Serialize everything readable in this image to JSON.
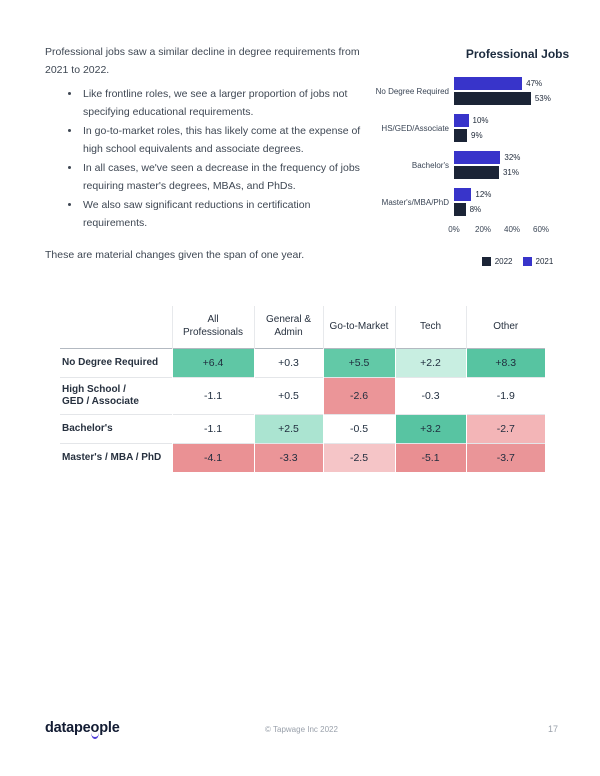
{
  "intro": {
    "lead": "Professional jobs saw a similar decline in degree requirements from 2021 to 2022.",
    "bullets": [
      "Like frontline roles, we see a larger proportion of jobs not specifying educational requirements.",
      "In go-to-market roles, this has likely come at the expense of high school equivalents and associate degrees.",
      "In all cases, we've seen a decrease in the frequency of jobs requiring master's degrees, MBAs, and PhDs.",
      "We also saw significant reductions in certification requirements."
    ],
    "outro": "These are material changes given the span of one year."
  },
  "chart_data": {
    "type": "bar",
    "orientation": "horizontal",
    "title": "Professional Jobs",
    "categories": [
      "No Degree Required",
      "HS/GED/Associate",
      "Bachelor's",
      "Master's/MBA/PhD"
    ],
    "series": [
      {
        "name": "2021",
        "color": "#3834ca",
        "values": [
          47,
          10,
          32,
          12
        ]
      },
      {
        "name": "2022",
        "color": "#1b2436",
        "values": [
          53,
          9,
          31,
          8
        ]
      }
    ],
    "value_label_suffix": "%",
    "x_ticks": [
      "0%",
      "20%",
      "40%",
      "60%"
    ],
    "x_tick_values": [
      0,
      20,
      40,
      60
    ],
    "xlim": [
      0,
      60
    ],
    "grid": false,
    "legend_position": "bottom",
    "legend": [
      {
        "label": "2022",
        "color": "#1b2436"
      },
      {
        "label": "2021",
        "color": "#3834ca"
      }
    ]
  },
  "table": {
    "columns": [
      "All Professionals",
      "General & Admin",
      "Go-to-Market",
      "Tech",
      "Other"
    ],
    "rows": [
      {
        "label": "No Degree Required",
        "values": [
          "+6.4",
          "+0.3",
          "+5.5",
          "+2.2",
          "+8.3"
        ],
        "colors": [
          "#5fc7a5",
          "#ffffff",
          "#62c9a7",
          "#c8eee1",
          "#57c4a1"
        ]
      },
      {
        "label": "High School /\nGED / Associate",
        "values": [
          "-1.1",
          "+0.5",
          "-2.6",
          "-0.3",
          "-1.9"
        ],
        "colors": [
          "#ffffff",
          "#ffffff",
          "#eb9598",
          "#ffffff",
          "#ffffff"
        ]
      },
      {
        "label": "Bachelor's",
        "values": [
          "-1.1",
          "+2.5",
          "-0.5",
          "+3.2",
          "-2.7"
        ],
        "colors": [
          "#ffffff",
          "#abe4d1",
          "#ffffff",
          "#58c4a2",
          "#f3b5b7"
        ]
      },
      {
        "label": "Master's / MBA / PhD",
        "values": [
          "-4.1",
          "-3.3",
          "-2.5",
          "-5.1",
          "-3.7"
        ],
        "colors": [
          "#ea9194",
          "#eb9598",
          "#f5c5c7",
          "#e98f92",
          "#ea9598"
        ]
      }
    ]
  },
  "footer": {
    "logo_prefix": "datape",
    "logo_smile_char": "o",
    "logo_suffix": "ple",
    "copyright": "© Tapwage Inc 2022",
    "page_number": "17"
  }
}
